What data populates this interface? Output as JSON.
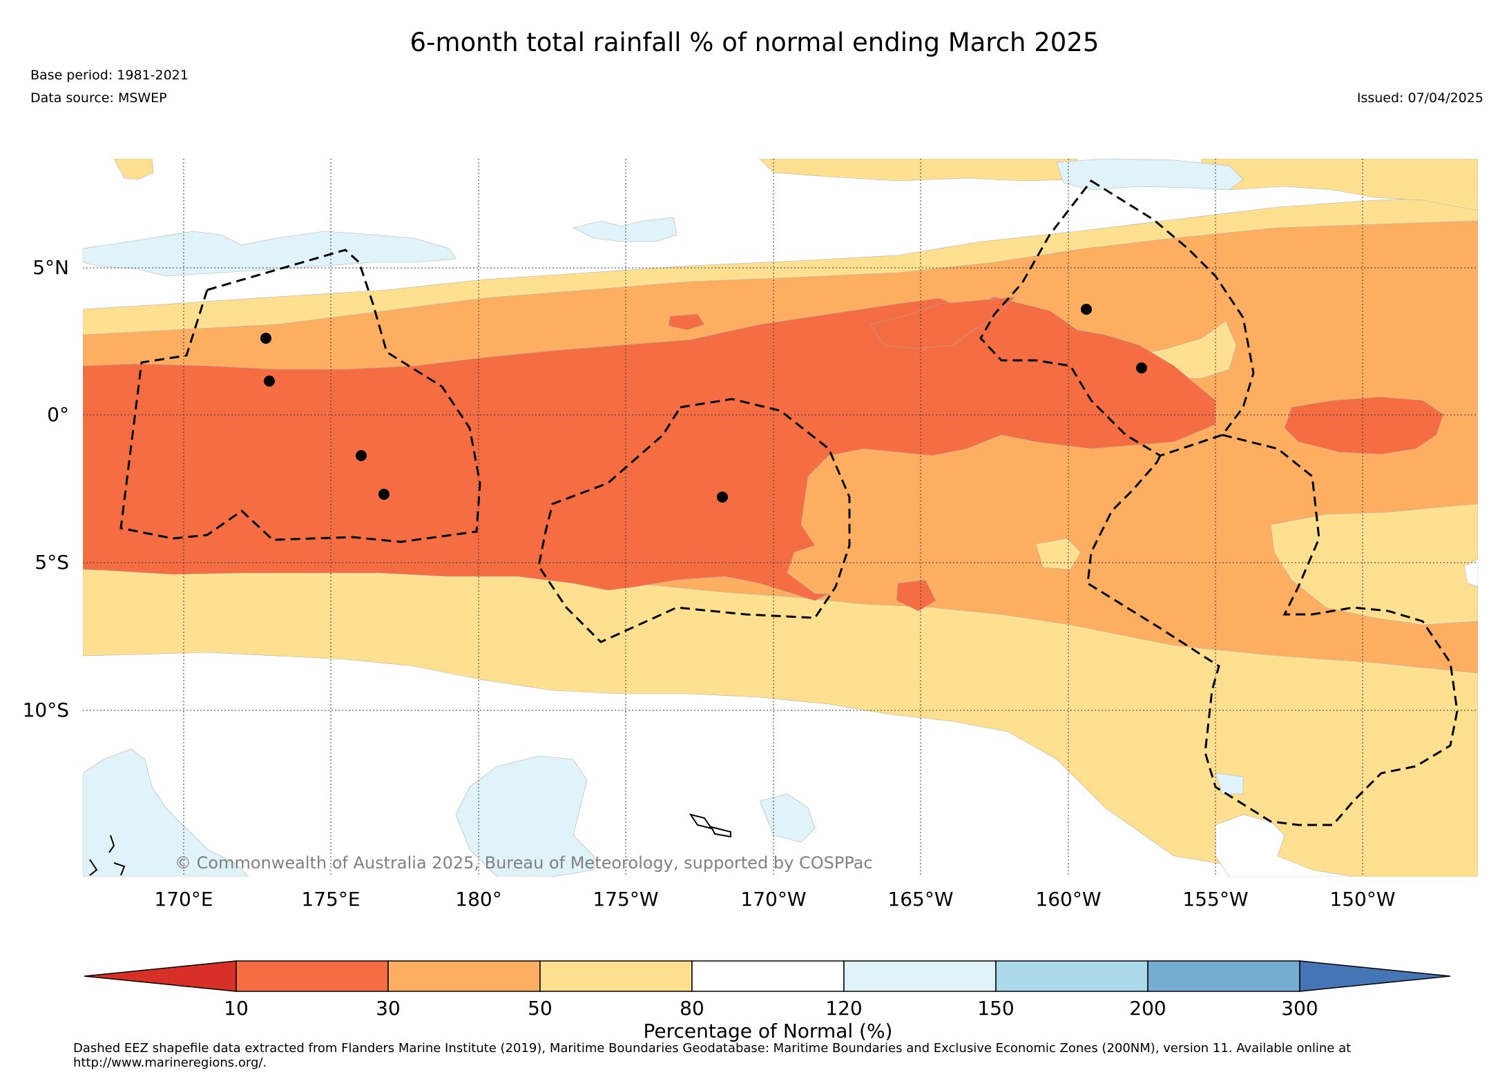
{
  "title": "6-month total rainfall % of normal ending March 2025",
  "meta": {
    "base_period": "Base period: 1981-2021",
    "data_source": "Data source: MSWEP",
    "issued": "Issued: 07/04/2025"
  },
  "copyright": "© Commonwealth of Australia 2025, Bureau of Meteorology, supported by COSPPac",
  "map": {
    "lat_labels": [
      "5°N",
      "0°",
      "5°S",
      "10°S"
    ],
    "lon_labels": [
      "170°E",
      "175°E",
      "180°",
      "175°W",
      "170°W",
      "165°W",
      "160°W",
      "155°W",
      "150°W"
    ],
    "gridlines": "dotted",
    "eez_boundary_style": "dashed",
    "island_marker_color": "#000000"
  },
  "colorbar": {
    "label": "Percentage of Normal (%)",
    "ticks": [
      "10",
      "30",
      "50",
      "80",
      "120",
      "150",
      "200",
      "300"
    ],
    "bins": [
      {
        "range": "<10",
        "color": "#d73027"
      },
      {
        "range": "10-30",
        "color": "#f46d43"
      },
      {
        "range": "30-50",
        "color": "#fdae61"
      },
      {
        "range": "50-80",
        "color": "#fee090"
      },
      {
        "range": "80-120",
        "color": "#ffffff"
      },
      {
        "range": "120-150",
        "color": "#e0f3f8"
      },
      {
        "range": "150-200",
        "color": "#abd9e9"
      },
      {
        "range": "200-300",
        "color": "#74add1"
      },
      {
        "range": ">300",
        "color": "#4575b4"
      }
    ]
  },
  "footnote": "Dashed EEZ shapefile data extracted from Flanders Marine Institute (2019), Maritime Boundaries Geodatabase: Maritime Boundaries and Exclusive Economic Zones (200NM), version 11. Available online at http://www.marineregions.org/."
}
